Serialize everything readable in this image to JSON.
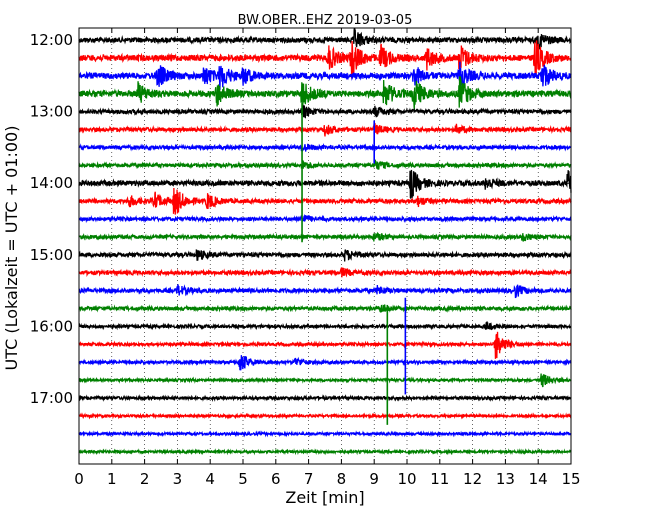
{
  "chart_data": {
    "type": "line",
    "title": "BW.OBER..EHZ 2019-03-05",
    "xlabel": "Zeit  [min]",
    "ylabel": "UTC (Lokalzeit = UTC + 01:00)",
    "xlim": [
      0,
      15
    ],
    "x_ticks": [
      "0",
      "1",
      "2",
      "3",
      "4",
      "5",
      "6",
      "7",
      "8",
      "9",
      "10",
      "11",
      "12",
      "13",
      "14",
      "15"
    ],
    "y_ticks": [
      {
        "label": "12:00",
        "row": 0
      },
      {
        "label": "13:00",
        "row": 4
      },
      {
        "label": "14:00",
        "row": 8
      },
      {
        "label": "15:00",
        "row": 12
      },
      {
        "label": "16:00",
        "row": 16
      },
      {
        "label": "17:00",
        "row": 20
      }
    ],
    "row_minutes": 15,
    "row_colors": [
      "#000000",
      "#ff0000",
      "#0000ff",
      "#008000"
    ],
    "grid": "vertical dotted at each minute",
    "rows": [
      {
        "start": "12:00",
        "amplitude": 2.5,
        "events": [
          {
            "t": 8.4,
            "amp": 10
          },
          {
            "t": 14.0,
            "amp": 8
          }
        ]
      },
      {
        "start": "12:15",
        "amplitude": 3,
        "events": [
          {
            "t": 7.6,
            "amp": 12
          },
          {
            "t": 8.3,
            "amp": 18
          },
          {
            "t": 9.2,
            "amp": 12
          },
          {
            "t": 10.6,
            "amp": 10
          },
          {
            "t": 11.6,
            "amp": 14
          },
          {
            "t": 13.9,
            "amp": 18
          }
        ]
      },
      {
        "start": "12:30",
        "amplitude": 3,
        "events": [
          {
            "t": 2.4,
            "amp": 12
          },
          {
            "t": 3.8,
            "amp": 10
          },
          {
            "t": 4.3,
            "amp": 12
          },
          {
            "t": 5.0,
            "amp": 8
          },
          {
            "t": 10.2,
            "amp": 10
          },
          {
            "t": 11.6,
            "amp": 12
          },
          {
            "t": 14.1,
            "amp": 14
          }
        ]
      },
      {
        "start": "12:45",
        "amplitude": 3,
        "events": [
          {
            "t": 1.8,
            "amp": 10
          },
          {
            "t": 4.2,
            "amp": 12
          },
          {
            "t": 6.8,
            "amp": 14
          },
          {
            "t": 9.3,
            "amp": 14
          },
          {
            "t": 10.2,
            "amp": 16
          },
          {
            "t": 11.6,
            "amp": 16
          }
        ]
      },
      {
        "start": "13:00",
        "amplitude": 2,
        "events": [
          {
            "t": 6.8,
            "amp": 6
          },
          {
            "t": 9.0,
            "amp": 5
          }
        ]
      },
      {
        "start": "13:15",
        "amplitude": 2,
        "events": [
          {
            "t": 7.5,
            "amp": 5
          },
          {
            "t": 9.0,
            "amp": 5
          },
          {
            "t": 11.5,
            "amp": 4
          }
        ]
      },
      {
        "start": "13:30",
        "amplitude": 1.8,
        "events": [
          {
            "t": 6.8,
            "amp": 4
          }
        ]
      },
      {
        "start": "13:45",
        "amplitude": 1.8,
        "events": [
          {
            "t": 6.8,
            "amp": 4
          },
          {
            "t": 9.0,
            "amp": 5
          }
        ]
      },
      {
        "start": "14:00",
        "amplitude": 2.5,
        "events": [
          {
            "t": 10.1,
            "amp": 16
          },
          {
            "t": 12.4,
            "amp": 6
          },
          {
            "t": 14.9,
            "amp": 12
          }
        ]
      },
      {
        "start": "14:15",
        "amplitude": 2,
        "events": [
          {
            "t": 1.5,
            "amp": 6
          },
          {
            "t": 2.3,
            "amp": 8
          },
          {
            "t": 2.9,
            "amp": 16
          },
          {
            "t": 3.9,
            "amp": 8
          },
          {
            "t": 10.3,
            "amp": 5
          }
        ]
      },
      {
        "start": "14:30",
        "amplitude": 1.8,
        "events": [
          {
            "t": 6.8,
            "amp": 4
          }
        ]
      },
      {
        "start": "14:45",
        "amplitude": 1.8,
        "events": [
          {
            "t": 9.0,
            "amp": 4
          },
          {
            "t": 13.5,
            "amp": 4
          }
        ]
      },
      {
        "start": "15:00",
        "amplitude": 2,
        "events": [
          {
            "t": 3.6,
            "amp": 5
          },
          {
            "t": 8.1,
            "amp": 5
          }
        ]
      },
      {
        "start": "15:15",
        "amplitude": 2,
        "events": [
          {
            "t": 8.0,
            "amp": 4
          }
        ]
      },
      {
        "start": "15:30",
        "amplitude": 2,
        "events": [
          {
            "t": 3.0,
            "amp": 5
          },
          {
            "t": 9.1,
            "amp": 4
          },
          {
            "t": 13.3,
            "amp": 6
          }
        ]
      },
      {
        "start": "15:45",
        "amplitude": 1.8,
        "events": [
          {
            "t": 9.2,
            "amp": 4
          }
        ]
      },
      {
        "start": "16:00",
        "amplitude": 1.5,
        "events": [
          {
            "t": 12.4,
            "amp": 4
          }
        ]
      },
      {
        "start": "16:15",
        "amplitude": 1.5,
        "events": [
          {
            "t": 12.7,
            "amp": 16
          }
        ]
      },
      {
        "start": "16:30",
        "amplitude": 1.5,
        "events": [
          {
            "t": 4.9,
            "amp": 10
          },
          {
            "t": 6.6,
            "amp": 4
          }
        ]
      },
      {
        "start": "16:45",
        "amplitude": 1.3,
        "events": [
          {
            "t": 14.1,
            "amp": 7
          }
        ]
      },
      {
        "start": "17:00",
        "amplitude": 1.5,
        "events": []
      },
      {
        "start": "17:15",
        "amplitude": 1.2,
        "events": []
      },
      {
        "start": "17:30",
        "amplitude": 1.2,
        "events": []
      },
      {
        "start": "17:45",
        "amplitude": 1.2,
        "events": []
      }
    ],
    "spikes": [
      {
        "t": 6.8,
        "row": 4,
        "color": "#008000",
        "top_row": 3.5,
        "bottom_row": 11.3
      },
      {
        "t": 9.0,
        "row": 5,
        "color": "#0000ff",
        "top_row": 4.5,
        "bottom_row": 6.9
      },
      {
        "t": 9.4,
        "row": 15,
        "color": "#008000",
        "top_row": 14.8,
        "bottom_row": 21.5
      },
      {
        "t": 9.95,
        "row": 15,
        "color": "#0000ff",
        "top_row": 14.4,
        "bottom_row": 19.8
      }
    ]
  }
}
